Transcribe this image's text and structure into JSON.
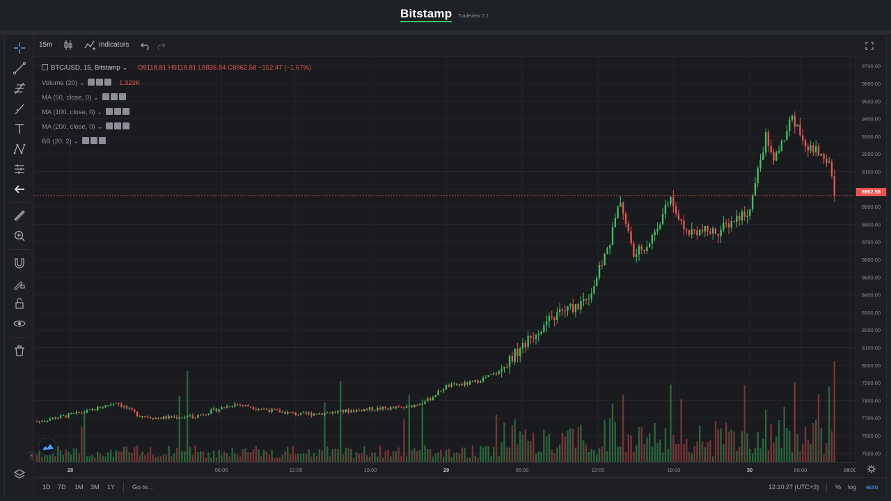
{
  "brand": {
    "name": "Bitstamp",
    "subtitle": "Tradeview 2.2"
  },
  "toolbar": {
    "interval": "15m",
    "indicators_label": "Indicators",
    "right_icon": "fullscreen-icon"
  },
  "left_tools": [
    {
      "name": "crosshair-icon"
    },
    {
      "name": "trend-line-icon"
    },
    {
      "name": "fib-icon"
    },
    {
      "name": "brush-icon"
    },
    {
      "name": "text-icon"
    },
    {
      "name": "pattern-icon"
    },
    {
      "name": "prediction-icon"
    },
    {
      "name": "back-arrow-icon"
    },
    {
      "name": "ruler-icon"
    },
    {
      "name": "zoom-in-icon"
    },
    {
      "name": "magnet-icon"
    },
    {
      "name": "lock-drawing-icon"
    },
    {
      "name": "unlock-icon"
    },
    {
      "name": "eye-icon"
    },
    {
      "name": "trash-icon"
    }
  ],
  "legend": {
    "symbol": "BTC/USD, 15, Bitstamp",
    "o": "O9118.81",
    "h": "H9118.81",
    "l": "L8836.84",
    "c": "C8962.58",
    "change": "−152.47 (−1.67%)",
    "volume_label": "Volume (20)",
    "volume_value": "1.323K",
    "ma50": "MA (50, close, 0)",
    "ma100": "MA (100, close, 0)",
    "ma200": "MA (200, close, 0)",
    "bb": "BB (20, 2)"
  },
  "current_price": "8962.58",
  "price_axis": [
    "9700.00",
    "9600.00",
    "9500.00",
    "9400.00",
    "9300.00",
    "9200.00",
    "9100.00",
    "9000.00",
    "8900.00",
    "8800.00",
    "8700.00",
    "8600.00",
    "8500.00",
    "8400.00",
    "8300.00",
    "8200.00",
    "8100.00",
    "8000.00",
    "7900.00",
    "7800.00",
    "7700.00",
    "7600.00",
    "7500.00"
  ],
  "time_axis": [
    "28",
    "06:00",
    "12:00",
    "18:00",
    "29",
    "06:00",
    "12:00",
    "18:00",
    "30",
    "06:00",
    "10:00",
    "14:00"
  ],
  "bottom": {
    "ranges": [
      "1D",
      "7D",
      "1M",
      "3M",
      "1Y"
    ],
    "goto": "Go to...",
    "clock": "12:10:27 (UTC+3)",
    "percent": "%",
    "log": "log",
    "auto": "auto"
  },
  "colors": {
    "up": "#26a69a",
    "up_green": "#3ec161",
    "down": "#ef5350",
    "bg": "#1a1b1f",
    "grid": "#24262b"
  },
  "chart_data": {
    "type": "candlestick",
    "symbol": "BTC/USD, 15, Bitstamp",
    "ylim": [
      7450,
      9750
    ],
    "anchors": [
      [
        0,
        7680
      ],
      [
        20,
        7740
      ],
      [
        30,
        7790
      ],
      [
        38,
        7720
      ],
      [
        45,
        7700
      ],
      [
        60,
        7710
      ],
      [
        75,
        7780
      ],
      [
        90,
        7740
      ],
      [
        100,
        7720
      ],
      [
        110,
        7730
      ],
      [
        125,
        7750
      ],
      [
        140,
        7760
      ],
      [
        148,
        7800
      ],
      [
        155,
        7880
      ],
      [
        165,
        7900
      ],
      [
        175,
        7960
      ],
      [
        180,
        8050
      ],
      [
        190,
        8200
      ],
      [
        198,
        8300
      ],
      [
        205,
        8340
      ],
      [
        210,
        8420
      ],
      [
        217,
        8700
      ],
      [
        221,
        8940
      ],
      [
        226,
        8620
      ],
      [
        232,
        8700
      ],
      [
        240,
        8950
      ],
      [
        245,
        8760
      ],
      [
        252,
        8760
      ],
      [
        258,
        8760
      ],
      [
        266,
        8850
      ],
      [
        270,
        8880
      ],
      [
        273,
        9100
      ],
      [
        276,
        9300
      ],
      [
        279,
        9150
      ],
      [
        286,
        9400
      ],
      [
        292,
        9240
      ],
      [
        297,
        9200
      ],
      [
        300,
        9160
      ],
      [
        302,
        8962
      ]
    ],
    "candle_count": 303,
    "last_close": 8962.58
  }
}
